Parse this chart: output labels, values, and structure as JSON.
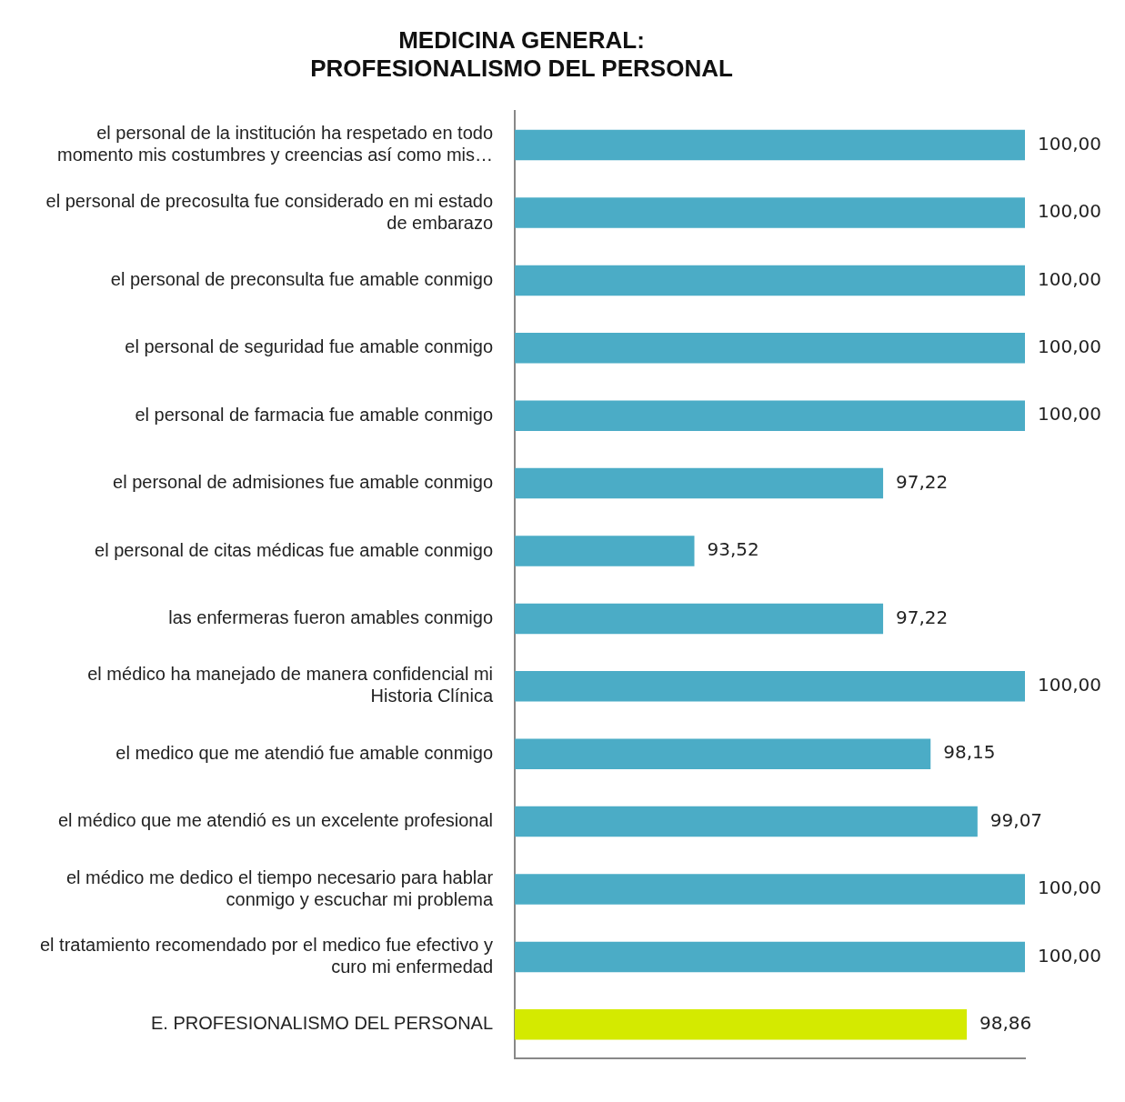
{
  "chart_data": {
    "type": "bar",
    "orientation": "horizontal",
    "title": "MEDICINA GENERAL:\nPROFESIONALISMO DEL PERSONAL",
    "categories": [
      "el personal de la institución ha respetado en todo momento mis costumbres y creencias así como mis…",
      "el personal de precosulta fue considerado en mi estado de embarazo",
      "el personal de preconsulta fue amable conmigo",
      "el personal de seguridad fue amable conmigo",
      "el personal de farmacia fue amable conmigo",
      "el personal de admisiones fue amable conmigo",
      "el personal de citas médicas fue amable conmigo",
      "las enfermeras fueron amables conmigo",
      "el médico ha manejado de manera confidencial mi Historia Clínica",
      "el medico que me atendió fue amable conmigo",
      "el médico que me atendió es un excelente profesional",
      "el médico me dedico el tiempo necesario para hablar conmigo y escuchar mi problema",
      "el tratamiento recomendado por el medico fue efectivo y curo mi enfermedad",
      "E. PROFESIONALISMO DEL PERSONAL"
    ],
    "values": [
      100,
      100,
      100,
      100,
      100,
      97.22,
      93.52,
      97.22,
      100,
      98.15,
      99.07,
      100,
      100,
      98.86
    ],
    "value_labels": [
      "100,00",
      "100,00",
      "100,00",
      "100,00",
      "100,00",
      "97,22",
      "93,52",
      "97,22",
      "100,00",
      "98,15",
      "99,07",
      "100,00",
      "100,00",
      "98,86"
    ],
    "colors": [
      "#4bacc6",
      "#4bacc6",
      "#4bacc6",
      "#4bacc6",
      "#4bacc6",
      "#4bacc6",
      "#4bacc6",
      "#4bacc6",
      "#4bacc6",
      "#4bacc6",
      "#4bacc6",
      "#4bacc6",
      "#4bacc6",
      "#d4ea00"
    ],
    "xlim": [
      90,
      100
    ],
    "tick_labels": "y",
    "legend": false
  }
}
